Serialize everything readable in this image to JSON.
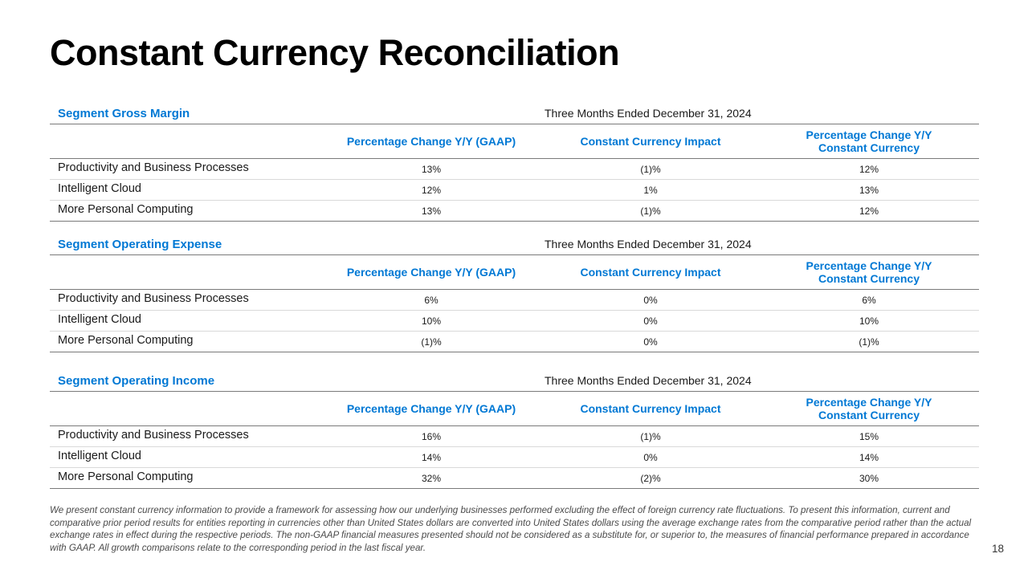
{
  "title": "Constant Currency Reconciliation",
  "columns": {
    "gaap": "Percentage Change Y/Y (GAAP)",
    "impact": "Constant Currency Impact",
    "cc_line1": "Percentage Change Y/Y",
    "cc_line2": "Constant Currency"
  },
  "sections": [
    {
      "title": "Segment Gross Margin",
      "period": "Three Months Ended December 31, 2024",
      "rows": [
        {
          "label": "Productivity and Business Processes",
          "gaap": "13%",
          "impact": "(1)%",
          "cc": "12%"
        },
        {
          "label": "Intelligent Cloud",
          "gaap": "12%",
          "impact": "1%",
          "cc": "13%"
        },
        {
          "label": "More Personal Computing",
          "gaap": "13%",
          "impact": "(1)%",
          "cc": "12%"
        }
      ]
    },
    {
      "title": "Segment Operating Expense",
      "period": "Three Months Ended December 31, 2024",
      "rows": [
        {
          "label": "Productivity and Business Processes",
          "gaap": "6%",
          "impact": "0%",
          "cc": "6%"
        },
        {
          "label": "Intelligent Cloud",
          "gaap": "10%",
          "impact": "0%",
          "cc": "10%"
        },
        {
          "label": "More Personal Computing",
          "gaap": "(1)%",
          "impact": "0%",
          "cc": "(1)%"
        }
      ]
    },
    {
      "title": "Segment Operating Income",
      "period": "Three Months Ended December 31, 2024",
      "rows": [
        {
          "label": "Productivity and Business Processes",
          "gaap": "16%",
          "impact": "(1)%",
          "cc": "15%"
        },
        {
          "label": "Intelligent Cloud",
          "gaap": "14%",
          "impact": "0%",
          "cc": "14%"
        },
        {
          "label": "More Personal Computing",
          "gaap": "32%",
          "impact": "(2)%",
          "cc": "30%"
        }
      ]
    }
  ],
  "footnote": "We present constant currency information to provide a framework for assessing how our underlying businesses performed excluding the effect of foreign currency rate fluctuations. To present this information, current and comparative prior period results for entities reporting in currencies other than United States dollars are converted into United States dollars using the average exchange rates from the comparative period rather than the actual exchange rates in effect during the respective periods. The non-GAAP financial measures presented should not be considered as a substitute for, or superior to, the measures of financial performance prepared in accordance with GAAP. All growth comparisons relate to the corresponding period in the last fiscal year.",
  "page_number": "18"
}
